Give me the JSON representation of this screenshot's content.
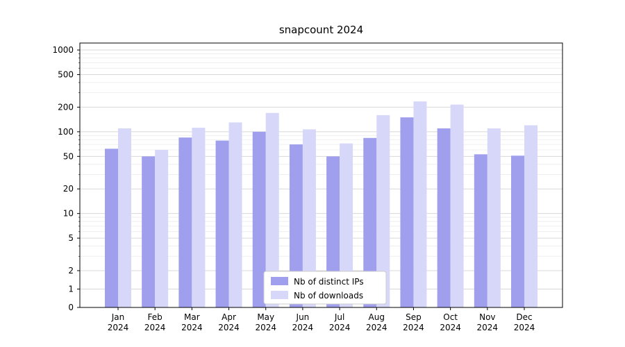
{
  "chart_data": {
    "type": "bar",
    "title": "snapcount 2024",
    "categories": [
      "Jan",
      "Feb",
      "Mar",
      "Apr",
      "May",
      "Jun",
      "Jul",
      "Aug",
      "Sep",
      "Oct",
      "Nov",
      "Dec"
    ],
    "year_label": "2024",
    "series": [
      {
        "name": "Nb of distinct IPs",
        "color": "#9f9fee",
        "values": [
          62,
          50,
          85,
          78,
          100,
          70,
          50,
          84,
          150,
          110,
          53,
          51
        ]
      },
      {
        "name": "Nb of downloads",
        "color": "#d7d7f9",
        "values": [
          110,
          60,
          112,
          130,
          170,
          107,
          72,
          160,
          235,
          215,
          110,
          120
        ]
      }
    ],
    "yscale": "symlog",
    "yticks": [
      0,
      1,
      2,
      5,
      10,
      20,
      50,
      100,
      200,
      500,
      1000
    ],
    "ylim": [
      0,
      1200
    ],
    "xlabel": "",
    "ylabel": "",
    "grid": true,
    "legend": {
      "position": "lower-center",
      "labels": [
        "Nb of distinct IPs",
        "Nb of downloads"
      ]
    }
  },
  "colors": {
    "background": "#ffffff",
    "grid_major": "#d8d8d8",
    "grid_minor": "#ebebeb",
    "spine": "#000000",
    "text": "#000000",
    "legend_border": "#cccccc",
    "legend_background": "#ffffff"
  }
}
